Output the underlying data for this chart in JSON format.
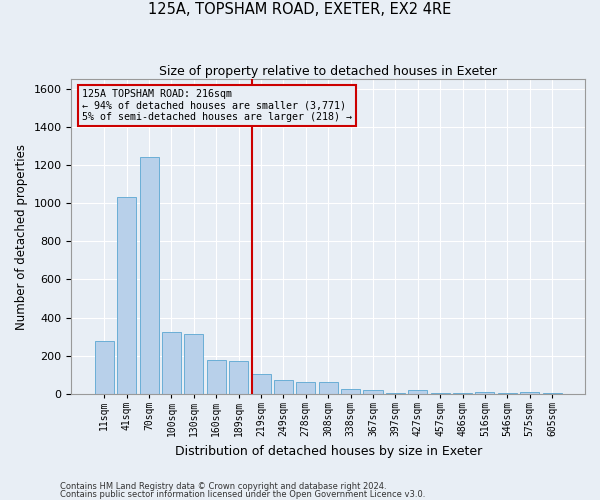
{
  "title": "125A, TOPSHAM ROAD, EXETER, EX2 4RE",
  "subtitle": "Size of property relative to detached houses in Exeter",
  "xlabel": "Distribution of detached houses by size in Exeter",
  "ylabel": "Number of detached properties",
  "footnote1": "Contains HM Land Registry data © Crown copyright and database right 2024.",
  "footnote2": "Contains public sector information licensed under the Open Government Licence v3.0.",
  "annotation_title": "125A TOPSHAM ROAD: 216sqm",
  "annotation_line1": "← 94% of detached houses are smaller (3,771)",
  "annotation_line2": "5% of semi-detached houses are larger (218) →",
  "bar_color": "#b8d0ea",
  "bar_edge_color": "#6aaed6",
  "bg_color": "#e8eef5",
  "grid_color": "#ffffff",
  "vline_color": "#cc0000",
  "annotation_box_color": "#cc0000",
  "categories": [
    "11sqm",
    "41sqm",
    "70sqm",
    "100sqm",
    "130sqm",
    "160sqm",
    "189sqm",
    "219sqm",
    "249sqm",
    "278sqm",
    "308sqm",
    "338sqm",
    "367sqm",
    "397sqm",
    "427sqm",
    "457sqm",
    "486sqm",
    "516sqm",
    "546sqm",
    "575sqm",
    "605sqm"
  ],
  "values": [
    280,
    1035,
    1240,
    325,
    315,
    180,
    175,
    105,
    75,
    65,
    65,
    25,
    22,
    5,
    22,
    5,
    5,
    12,
    5,
    12,
    5
  ],
  "vline_x_index": 7,
  "ylim": [
    0,
    1650
  ],
  "yticks": [
    0,
    200,
    400,
    600,
    800,
    1000,
    1200,
    1400,
    1600
  ],
  "figsize": [
    6.0,
    5.0
  ],
  "dpi": 100
}
